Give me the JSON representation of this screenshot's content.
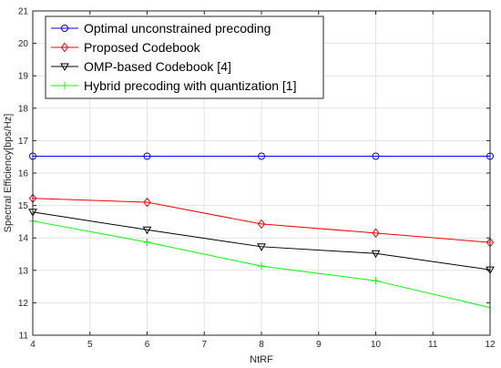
{
  "chart_data": {
    "type": "line",
    "xlabel": "NtRF",
    "ylabel": "Spectral Efficiency[bps/Hz]",
    "xlim": [
      4,
      12
    ],
    "ylim": [
      11,
      21
    ],
    "xticks": [
      4,
      5,
      6,
      7,
      8,
      9,
      10,
      11,
      12
    ],
    "yticks": [
      11,
      12,
      13,
      14,
      15,
      16,
      17,
      18,
      19,
      20,
      21
    ],
    "grid": true,
    "legend_position": "top-left",
    "x": [
      4,
      6,
      8,
      10,
      12
    ],
    "series": [
      {
        "name": "Optimal unconstrained precoding",
        "values": [
          16.52,
          16.52,
          16.52,
          16.52,
          16.52
        ],
        "color": "#0000ff",
        "marker": "circle",
        "marker_x": [
          4,
          6,
          8,
          10,
          12
        ]
      },
      {
        "name": "Proposed Codebook",
        "values": [
          15.22,
          15.1,
          14.43,
          14.15,
          13.86
        ],
        "color": "#ff0000",
        "marker": "diamond",
        "marker_x": [
          4,
          6,
          8,
          10,
          12
        ]
      },
      {
        "name": "OMP-based Codebook [4]",
        "values": [
          14.8,
          14.25,
          13.73,
          13.52,
          13.02
        ],
        "color": "#000000",
        "marker": "triangle-down",
        "marker_x": [
          4,
          6,
          8,
          10,
          12
        ]
      },
      {
        "name": "Hybrid precoding with quantization [1]",
        "values": [
          14.52,
          13.87,
          13.13,
          12.68,
          11.85
        ],
        "color": "#00ff00",
        "marker": "plus",
        "marker_x": [
          4,
          6,
          8,
          10
        ]
      }
    ]
  }
}
